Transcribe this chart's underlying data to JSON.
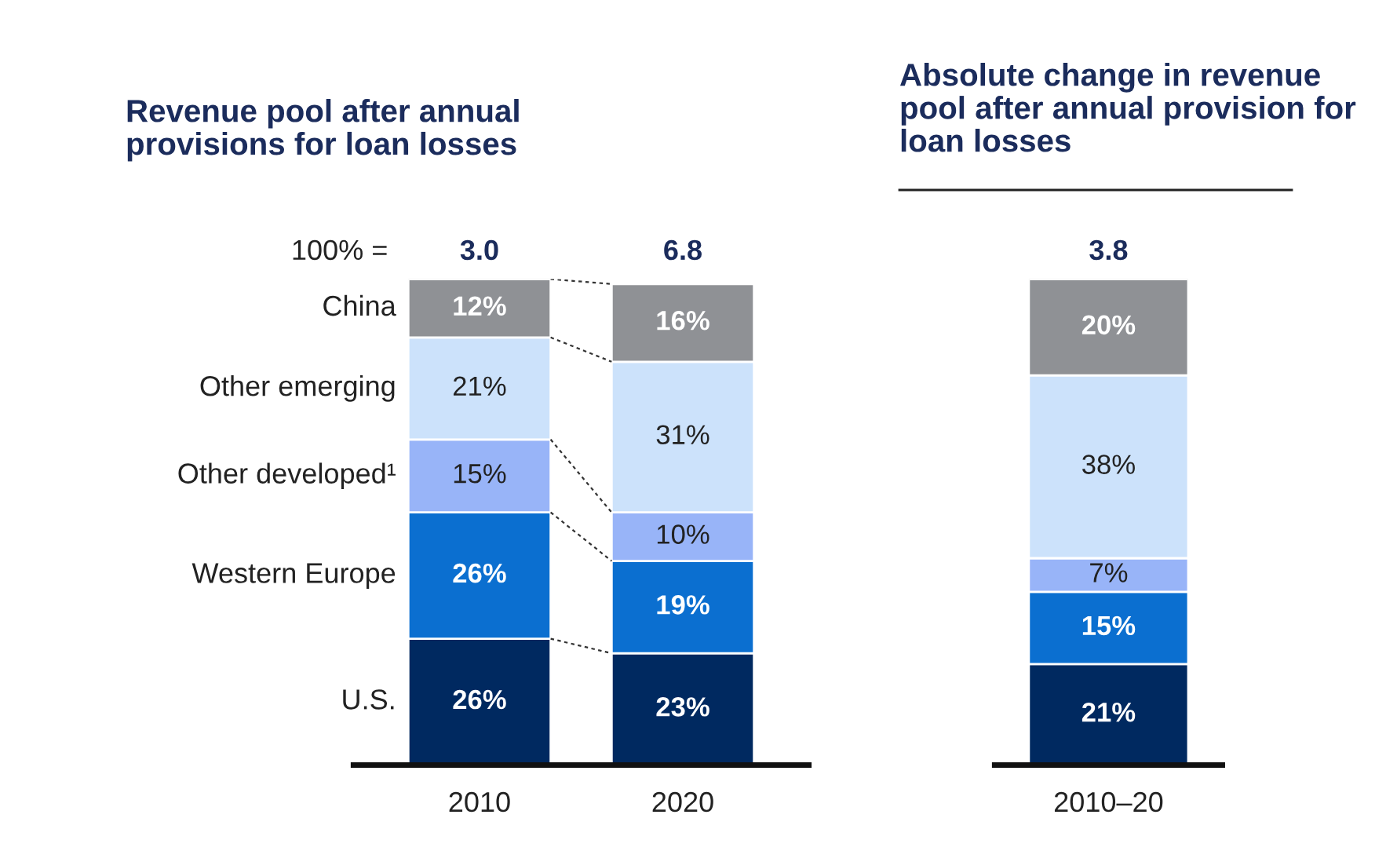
{
  "chart_data": [
    {
      "type": "bar",
      "stacked": true,
      "title": "Revenue pool after annual provisions for loan losses",
      "categories": [
        "2010",
        "2020"
      ],
      "legend": "left",
      "annotations": [
        "100% =",
        "3.0",
        "6.8"
      ],
      "series": [
        {
          "name": "U.S.",
          "color": "#002960",
          "values": [
            26,
            23
          ],
          "value_labels": [
            "26%",
            "23%"
          ]
        },
        {
          "name": "Western Europe",
          "color": "#0b6fd0",
          "values": [
            26,
            19
          ],
          "value_labels": [
            "26%",
            "19%"
          ]
        },
        {
          "name": "Other developed¹",
          "color": "#98b4f8",
          "values": [
            15,
            10
          ],
          "value_labels": [
            "15%",
            "10%"
          ]
        },
        {
          "name": "Other emerging",
          "color": "#cce2fb",
          "values": [
            21,
            31
          ],
          "value_labels": [
            "21%",
            "31%"
          ]
        },
        {
          "name": "China",
          "color": "#8f9195",
          "values": [
            12,
            16
          ],
          "value_labels": [
            "12%",
            "16%"
          ]
        }
      ]
    },
    {
      "type": "bar",
      "stacked": true,
      "title": "Absolute change in revenue pool after annual provision for loan losses",
      "categories": [
        "2010–20"
      ],
      "annotations": [
        "3.8"
      ],
      "series": [
        {
          "color": "#002960",
          "values": [
            21
          ],
          "value_labels": [
            "21%"
          ]
        },
        {
          "color": "#0b6fd0",
          "values": [
            15
          ],
          "value_labels": [
            "15%"
          ]
        },
        {
          "color": "#98b4f8",
          "values": [
            7
          ],
          "value_labels": [
            "7%"
          ]
        },
        {
          "color": "#cce2fb",
          "values": [
            38
          ],
          "value_labels": [
            "38%"
          ]
        },
        {
          "color": "#8f9195",
          "values": [
            20
          ],
          "value_labels": [
            "20%"
          ]
        }
      ]
    }
  ]
}
